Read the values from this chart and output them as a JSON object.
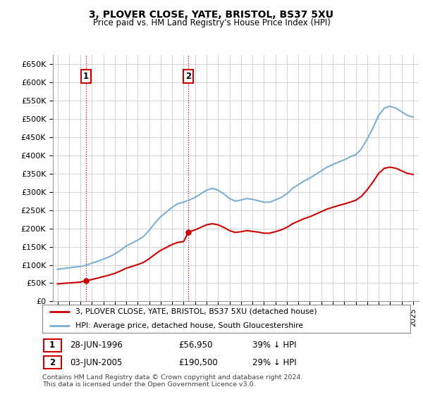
{
  "title": "3, PLOVER CLOSE, YATE, BRISTOL, BS37 5XU",
  "subtitle": "Price paid vs. HM Land Registry's House Price Index (HPI)",
  "ylabel_ticks": [
    "£0",
    "£50K",
    "£100K",
    "£150K",
    "£200K",
    "£250K",
    "£300K",
    "£350K",
    "£400K",
    "£450K",
    "£500K",
    "£550K",
    "£600K",
    "£650K"
  ],
  "ytick_values": [
    0,
    50000,
    100000,
    150000,
    200000,
    250000,
    300000,
    350000,
    400000,
    450000,
    500000,
    550000,
    600000,
    650000
  ],
  "xlim_start": 1993.6,
  "xlim_end": 2025.5,
  "ylim_min": 0,
  "ylim_max": 675000,
  "sale1_year": 1996.49,
  "sale1_price": 56950,
  "sale2_year": 2005.42,
  "sale2_price": 190500,
  "sale1_label": "1",
  "sale2_label": "2",
  "legend_line1": "3, PLOVER CLOSE, YATE, BRISTOL, BS37 5XU (detached house)",
  "legend_line2": "HPI: Average price, detached house, South Gloucestershire",
  "footnote": "Contains HM Land Registry data © Crown copyright and database right 2024.\nThis data is licensed under the Open Government Licence v3.0.",
  "line_color_price": "#cc0000",
  "line_color_hpi": "#7bafd4",
  "background_color": "#ffffff",
  "grid_color": "#cccccc",
  "hpi_years": [
    1994,
    1994.5,
    1995,
    1995.5,
    1996,
    1996.5,
    1997,
    1997.5,
    1998,
    1998.5,
    1999,
    1999.5,
    2000,
    2000.5,
    2001,
    2001.5,
    2002,
    2002.5,
    2003,
    2003.5,
    2004,
    2004.5,
    2005,
    2005.5,
    2006,
    2006.5,
    2007,
    2007.5,
    2008,
    2008.5,
    2009,
    2009.5,
    2010,
    2010.5,
    2011,
    2011.5,
    2012,
    2012.5,
    2013,
    2013.5,
    2014,
    2014.5,
    2015,
    2015.5,
    2016,
    2016.5,
    2017,
    2017.5,
    2018,
    2018.5,
    2019,
    2019.5,
    2020,
    2020.5,
    2021,
    2021.5,
    2022,
    2022.5,
    2023,
    2023.5,
    2024,
    2024.5,
    2025
  ],
  "hpi_values": [
    88000,
    90000,
    92000,
    94000,
    96000,
    99000,
    105000,
    110000,
    116000,
    122000,
    130000,
    140000,
    152000,
    160000,
    168000,
    178000,
    195000,
    215000,
    232000,
    245000,
    258000,
    268000,
    272000,
    278000,
    285000,
    295000,
    305000,
    310000,
    305000,
    295000,
    282000,
    275000,
    278000,
    282000,
    280000,
    276000,
    272000,
    272000,
    278000,
    285000,
    295000,
    310000,
    320000,
    330000,
    338000,
    348000,
    358000,
    368000,
    375000,
    382000,
    388000,
    396000,
    402000,
    418000,
    445000,
    475000,
    510000,
    530000,
    535000,
    530000,
    520000,
    510000,
    505000
  ],
  "red_years": [
    1994,
    1994.5,
    1995,
    1995.5,
    1996,
    1996.49,
    1997,
    1997.5,
    1998,
    1998.5,
    1999,
    1999.5,
    2000,
    2000.5,
    2001,
    2001.5,
    2002,
    2002.5,
    2003,
    2003.5,
    2004,
    2004.5,
    2005,
    2005.42,
    2006,
    2006.5,
    2007,
    2007.5,
    2008,
    2008.5,
    2009,
    2009.5,
    2010,
    2010.5,
    2011,
    2011.5,
    2012,
    2012.5,
    2013,
    2013.5,
    2014,
    2014.5,
    2015,
    2015.5,
    2016,
    2016.5,
    2017,
    2017.5,
    2018,
    2018.5,
    2019,
    2019.5,
    2020,
    2020.5,
    2021,
    2021.5,
    2022,
    2022.5,
    2023,
    2023.5,
    2024,
    2024.5,
    2025
  ],
  "red_values": [
    48000,
    49500,
    50500,
    51500,
    53000,
    56950,
    60000,
    64000,
    68000,
    72000,
    77000,
    83500,
    91000,
    96000,
    101000,
    107000,
    117000,
    129000,
    140000,
    148000,
    156000,
    162000,
    164000,
    190500,
    196000,
    203000,
    210000,
    213000,
    210000,
    203000,
    194000,
    189000,
    191000,
    194000,
    192000,
    190000,
    187000,
    187000,
    191000,
    196000,
    203000,
    213000,
    220000,
    227000,
    232000,
    239000,
    246000,
    253000,
    258000,
    263000,
    267000,
    272000,
    277000,
    288000,
    306000,
    327000,
    351000,
    365000,
    368000,
    365000,
    358000,
    351000,
    348000
  ]
}
